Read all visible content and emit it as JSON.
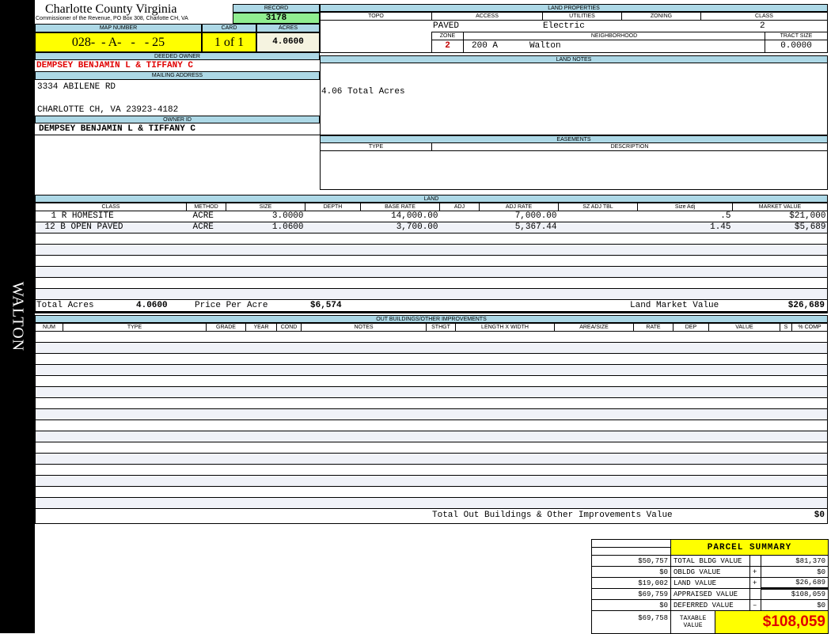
{
  "side_label": "WALTON",
  "header": {
    "title": "Charlotte County Virginia",
    "subtitle": "Commissioner of the Revenue, PO Box 308, Charlotte CH, VA",
    "record_label": "RECORD",
    "record": "3178"
  },
  "parcel": {
    "map_number_label": "MAP NUMBER",
    "map_number": "028-  - A-   -   - 25",
    "card_label": "CARD",
    "card": "1 of 1",
    "acres_label": "ACRES",
    "acres": "4.0600"
  },
  "owner": {
    "deeded_label": "DEEDED OWNER",
    "deeded": "DEMPSEY BENJAMIN L & TIFFANY C",
    "mailing_label": "MAILING ADDRESS",
    "address1": "3334 ABILENE RD",
    "address2": "CHARLOTTE CH, VA 23923-4182",
    "id_label": "OWNER ID",
    "id": "DEMPSEY BENJAMIN L & TIFFANY C"
  },
  "land_properties": {
    "label": "LAND PROPERTIES",
    "topo_label": "TOPO",
    "access_label": "ACCESS",
    "utilities_label": "UTILITIES",
    "zoning_label": "ZONING",
    "class_label": "CLASS",
    "access": "PAVED",
    "utilities": "Electric",
    "class": "2",
    "zone_label": "ZONE",
    "neighborhood_label": "NEIGHBORHOOD",
    "tract_label": "TRACT SIZE",
    "zone": "2",
    "neighborhood_code": "200 A",
    "neighborhood": "Walton",
    "tract_size": "0.0000"
  },
  "land_notes": {
    "label": "LAND NOTES",
    "text": "4.06 Total Acres"
  },
  "easements": {
    "label": "EASEMENTS",
    "type_label": "TYPE",
    "description_label": "DESCRIPTION"
  },
  "land": {
    "label": "LAND",
    "columns": [
      "CLASS",
      "METHOD",
      "SIZE",
      "DEPTH",
      "BASE RATE",
      "ADJ",
      "ADJ RATE",
      "SZ ADJ TBL",
      "Size Adj",
      "MARKET VALUE"
    ],
    "rows": [
      [
        "1 R HOMESITE",
        "ACRE",
        "3.0000",
        "",
        "14,000.00",
        "",
        "7,000.00",
        "",
        ".5",
        "$21,000"
      ],
      [
        "12 B OPEN PAVED",
        "ACRE",
        "1.0600",
        "",
        "3,700.00",
        "",
        "5,367.44",
        "",
        "1.45",
        "$5,689"
      ]
    ],
    "total_acres_label": "Total Acres",
    "total_acres": "4.0600",
    "ppa_label": "Price Per Acre",
    "ppa": "$6,574",
    "lmv_label": "Land Market Value",
    "lmv": "$26,689"
  },
  "outbuildings": {
    "label": "OUT BUILDINGS/OTHER IMPROVEMENTS",
    "columns": [
      "NUM",
      "TYPE",
      "GRADE",
      "YEAR",
      "COND",
      "NOTES",
      "STHGT",
      "LENGTH X WIDTH",
      "AREA/SIZE",
      "RATE",
      "DEP",
      "VALUE",
      "S",
      "% COMP"
    ],
    "total_label": "Total Out Buildings & Other Improvements Value",
    "total": "$0"
  },
  "summary": {
    "title": "PARCEL SUMMARY",
    "rows": [
      {
        "prev": "$50,757",
        "label": "TOTAL BLDG VALUE",
        "op": "",
        "value": "$81,370"
      },
      {
        "prev": "$0",
        "label": "OBLDG VALUE",
        "op": "+",
        "value": "$0"
      },
      {
        "prev": "$19,002",
        "label": "LAND VALUE",
        "op": "+",
        "value": "$26,689"
      },
      {
        "prev": "$69,759",
        "label": "APPRAISED VALUE",
        "op": "",
        "value": "$108,059"
      },
      {
        "prev": "$0",
        "label": "DEFERRED VALUE",
        "op": "–",
        "value": "$0"
      }
    ],
    "taxable_prev": "$69,758",
    "taxable_label": "TAXABLE VALUE",
    "taxable": "$108,059"
  },
  "colors": {
    "header": "#add8e6",
    "record": "#90ee90",
    "highlight": "#ffff00",
    "owner": "#e00000"
  }
}
